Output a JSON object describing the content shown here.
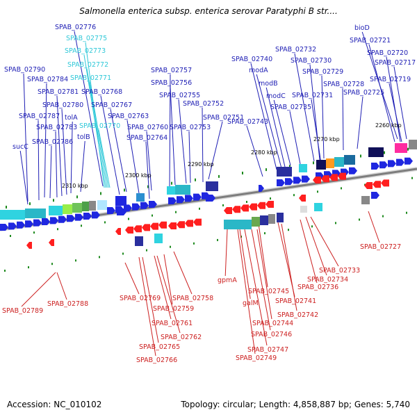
{
  "title": "Salmonella enterica subsp. enterica serovar Paratyphi B str....",
  "footer": {
    "accession": "Accession: NC_010102",
    "summary": "Topology: circular; Length: 4,858,887 bp; Genes: 5,740"
  },
  "colors": {
    "forward_gene": "#1f27e0",
    "reverse_gene": "#ff1f1f",
    "forward_label": "#1d1db4",
    "reverse_label": "#cc1f1f",
    "cyan_label": "#2fc8d8",
    "tick": "#1e8a1e",
    "backbone": "#7d7d7d"
  },
  "scale_labels": [
    "2260 kbp",
    "2270 kbp",
    "2280 kbp",
    "2290 kbp",
    "2300 kbp",
    "2310 kbp"
  ],
  "forward_labels": [
    "SPAB_02776",
    "SPAB_02790",
    "SPAB_02784",
    "SPAB_02781",
    "SPAB_02780",
    "SPAB_02787",
    "tolA",
    "SPAB_02783",
    "tolB",
    "sucC",
    "SPAB_02786",
    "SPAB_02768",
    "SPAB_02767",
    "SPAB_02763",
    "SPAB_02760",
    "SPAB_02764",
    "SPAB_02757",
    "SPAB_02756",
    "SPAB_02755",
    "SPAB_02752",
    "SPAB_02751",
    "SPAB_02753",
    "SPAB_02740",
    "modA",
    "modB",
    "modC",
    "SPAB_02735",
    "SPAB_02743",
    "SPAB_02732",
    "SPAB_02730",
    "SPAB_02729",
    "SPAB_02731",
    "SPAB_02728",
    "SPAB_02725",
    "bioD",
    "SPAB_02721",
    "SPAB_02720",
    "SPAB_02717",
    "SPAB_02719"
  ],
  "cyan_labels": [
    "SPAB_02775",
    "SPAB_02773",
    "SPAB_02772",
    "SPAB_02771",
    "SPAB_02770"
  ],
  "reverse_labels": [
    "SPAB_02789",
    "SPAB_02788",
    "SPAB_02769",
    "SPAB_02758",
    "SPAB_02759",
    "SPAB_02761",
    "SPAB_02762",
    "SPAB_02765",
    "SPAB_02766",
    "gpmA",
    "galM",
    "SPAB_02745",
    "SPAB_02741",
    "SPAB_02742",
    "SPAB_02744",
    "SPAB_02746",
    "SPAB_02747",
    "SPAB_02749",
    "SPAB_02733",
    "SPAB_02734",
    "SPAB_02736",
    "SPAB_02727"
  ]
}
